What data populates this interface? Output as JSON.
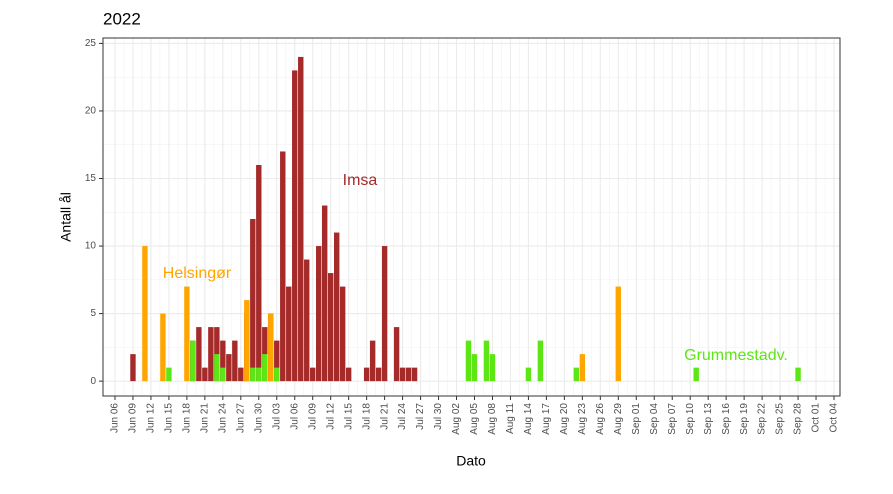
{
  "chart_data": {
    "type": "bar",
    "title": "2022",
    "x_label": "Dato",
    "y_label": "Antall ål",
    "series": [
      {
        "name": "Imsa",
        "color": "#a52a2a",
        "x": [
          "Jun 09",
          "Jun 19",
          "Jun 20",
          "Jun 21",
          "Jun 22",
          "Jun 23",
          "Jun 24",
          "Jun 25",
          "Jun 26",
          "Jun 27",
          "Jun 28",
          "Jun 29",
          "Jun 30",
          "Jul 01",
          "Jul 02",
          "Jul 03",
          "Jul 04",
          "Jul 05",
          "Jul 06",
          "Jul 07",
          "Jul 08",
          "Jul 09",
          "Jul 10",
          "Jul 11",
          "Jul 12",
          "Jul 13",
          "Jul 14",
          "Jul 15",
          "Jul 18",
          "Jul 19",
          "Jul 20",
          "Jul 21",
          "Jul 23",
          "Jul 24",
          "Jul 25",
          "Jul 26"
        ],
        "values": [
          2,
          3,
          4,
          1,
          4,
          4,
          3,
          2,
          3,
          1,
          5,
          12,
          16,
          4,
          5,
          3,
          17,
          7,
          23,
          24,
          9,
          1,
          10,
          13,
          8,
          11,
          7,
          1,
          1,
          3,
          1,
          10,
          4,
          1,
          1,
          1
        ]
      },
      {
        "name": "Helsingør",
        "color": "#ffa500",
        "x": [
          "Jun 11",
          "Jun 14",
          "Jun 18",
          "Jun 28",
          "Jul 02",
          "Aug 23",
          "Aug 29"
        ],
        "values": [
          10,
          5,
          7,
          6,
          5,
          2,
          7
        ]
      },
      {
        "name": "Grummestadv.",
        "color": "#5ce614",
        "x": [
          "Jun 15",
          "Jun 19",
          "Jun 23",
          "Jun 24",
          "Jun 29",
          "Jun 30",
          "Jul 01",
          "Jul 03",
          "Aug 04",
          "Aug 05",
          "Aug 07",
          "Aug 08",
          "Aug 14",
          "Aug 16",
          "Aug 22",
          "Sep 11",
          "Sep 28"
        ],
        "values": [
          1,
          3,
          2,
          1,
          1,
          1,
          2,
          1,
          3,
          2,
          3,
          2,
          1,
          3,
          1,
          1,
          1
        ]
      }
    ],
    "xlim": [
      "Jun 04",
      "Oct 05"
    ],
    "xticks": [
      "Jun 06",
      "Jun 09",
      "Jun 12",
      "Jun 15",
      "Jun 18",
      "Jun 21",
      "Jun 24",
      "Jun 27",
      "Jun 30",
      "Jul 03",
      "Jul 06",
      "Jul 09",
      "Jul 12",
      "Jul 15",
      "Jul 18",
      "Jul 21",
      "Jul 24",
      "Jul 27",
      "Jul 30",
      "Aug 02",
      "Aug 05",
      "Aug 08",
      "Aug 11",
      "Aug 14",
      "Aug 17",
      "Aug 20",
      "Aug 23",
      "Aug 26",
      "Aug 29",
      "Sep 01",
      "Sep 04",
      "Sep 07",
      "Sep 10",
      "Sep 13",
      "Sep 16",
      "Sep 19",
      "Sep 22",
      "Sep 25",
      "Sep 28",
      "Oct 01",
      "Oct 04"
    ],
    "ylim": [
      -1.1,
      25.4
    ],
    "yticks": [
      0,
      5,
      10,
      15,
      20,
      25
    ],
    "grid": true
  }
}
